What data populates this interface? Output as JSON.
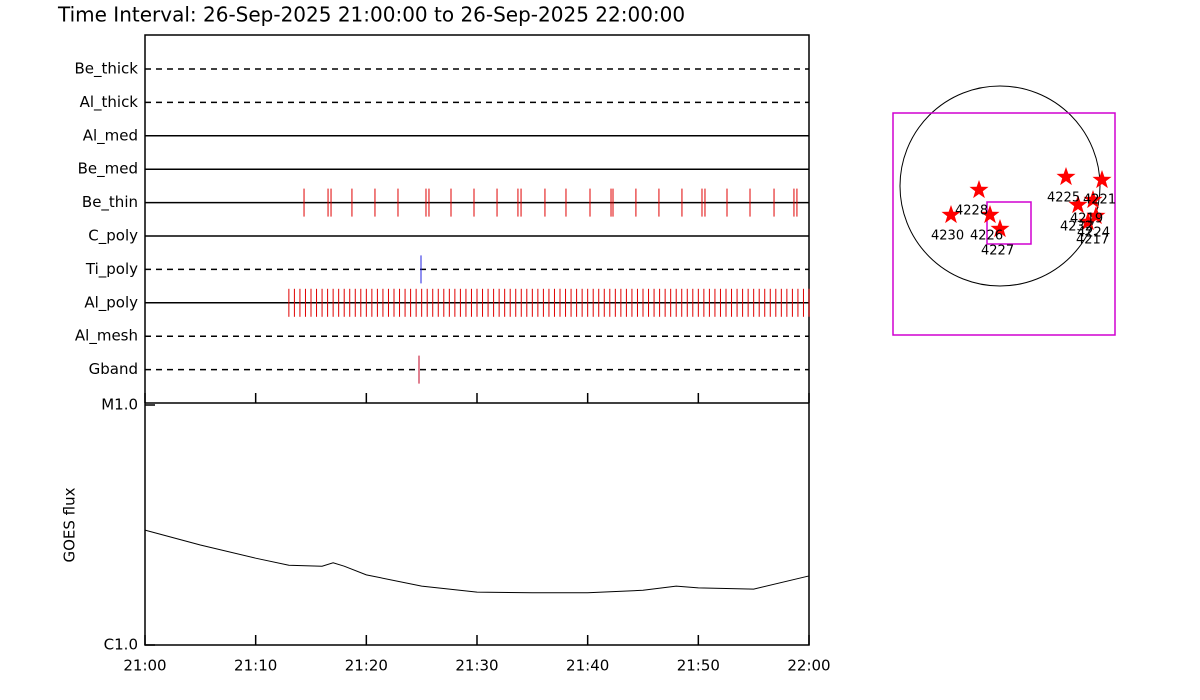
{
  "chart_data": [
    {
      "type": "timeline",
      "title": "Time Interval: 26-Sep-2025 21:00:00 to 26-Sep-2025 22:00:00",
      "xlim": [
        0,
        60
      ],
      "rows": [
        {
          "name": "Be_thick",
          "style": "dashed",
          "color": "#e00000",
          "times": []
        },
        {
          "name": "Al_thick",
          "style": "dashed",
          "color": "#e00000",
          "times": []
        },
        {
          "name": "Al_med",
          "style": "solid",
          "color": "#e00000",
          "times": []
        },
        {
          "name": "Be_med",
          "style": "solid",
          "color": "#e00000",
          "times": []
        },
        {
          "name": "Be_thin",
          "style": "solid",
          "color": "#e00000",
          "times": [
            14.37,
            16.54,
            16.81,
            18.7,
            20.78,
            22.86,
            25.39,
            25.66,
            27.65,
            29.73,
            31.81,
            33.7,
            33.98,
            36.14,
            38.04,
            40.21,
            42.11,
            42.29,
            44.36,
            46.44,
            48.52,
            50.33,
            50.6,
            52.59,
            54.67,
            56.84,
            58.64,
            58.91
          ]
        },
        {
          "name": "C_poly",
          "style": "solid",
          "color": "#e00000",
          "times": []
        },
        {
          "name": "Ti_poly",
          "style": "dashed",
          "color": "#2020e0",
          "times": [
            24.94
          ]
        },
        {
          "name": "Al_poly",
          "style": "solid",
          "color": "#e00000",
          "times": [
            13,
            13.5,
            14,
            14.5,
            15,
            15.5,
            16,
            16.5,
            17,
            17.5,
            18,
            18.5,
            19,
            19.5,
            20,
            20.5,
            21,
            21.5,
            22,
            22.5,
            23,
            23.5,
            24,
            24.5,
            25,
            25.5,
            26,
            26.5,
            27,
            27.5,
            28,
            28.5,
            29,
            29.5,
            30,
            30.5,
            31,
            31.5,
            32,
            32.5,
            33,
            33.5,
            34,
            34.5,
            35,
            35.5,
            36,
            36.5,
            37,
            37.5,
            38,
            38.5,
            39,
            39.5,
            40,
            40.5,
            41,
            41.5,
            42,
            42.5,
            43,
            43.5,
            44,
            44.5,
            45,
            45.5,
            46,
            46.5,
            47,
            47.5,
            48,
            48.5,
            49,
            49.5,
            50,
            50.5,
            51,
            51.5,
            52,
            52.5,
            53,
            53.5,
            54,
            54.5,
            55,
            55.5,
            56,
            56.5,
            57,
            57.5,
            58,
            58.5,
            59,
            59.5,
            60
          ]
        },
        {
          "name": "Al_mesh",
          "style": "dashed",
          "color": "#e00000",
          "times": []
        },
        {
          "name": "Gband",
          "style": "dashed",
          "color": "#c00020",
          "times": [
            24.76
          ]
        }
      ]
    },
    {
      "type": "line",
      "ylabel": "GOES flux",
      "log_scale": true,
      "x": [
        0,
        5,
        10,
        13,
        16,
        17,
        18,
        20,
        25,
        30,
        35,
        40,
        45,
        48,
        50,
        55,
        60
      ],
      "values": [
        3.01e-06,
        2.61e-06,
        2.3e-06,
        2.15e-06,
        2.13e-06,
        2.2e-06,
        2.13e-06,
        1.96e-06,
        1.76e-06,
        1.66e-06,
        1.65e-06,
        1.65e-06,
        1.69e-06,
        1.76e-06,
        1.73e-06,
        1.71e-06,
        1.94e-06
      ],
      "color": "#000000",
      "xlim": [
        0,
        60
      ],
      "xticks": [
        {
          "value": 0,
          "label": "21:00"
        },
        {
          "value": 10,
          "label": "21:10"
        },
        {
          "value": 20,
          "label": "21:20"
        },
        {
          "value": 30,
          "label": "21:30"
        },
        {
          "value": 40,
          "label": "21:40"
        },
        {
          "value": 50,
          "label": "21:50"
        },
        {
          "value": 60,
          "label": "22:00"
        }
      ],
      "ylim": [
        1e-06,
        1e-05
      ],
      "yticks": [
        {
          "value": 1e-06,
          "label": "C1.0"
        },
        {
          "value": 1e-05,
          "label": "M1.0"
        }
      ]
    },
    {
      "type": "map",
      "labels": [
        "4228",
        "4230",
        "4226",
        "4227",
        "4225",
        "4221",
        "4219",
        "4232",
        "4224",
        "4217"
      ]
    }
  ]
}
